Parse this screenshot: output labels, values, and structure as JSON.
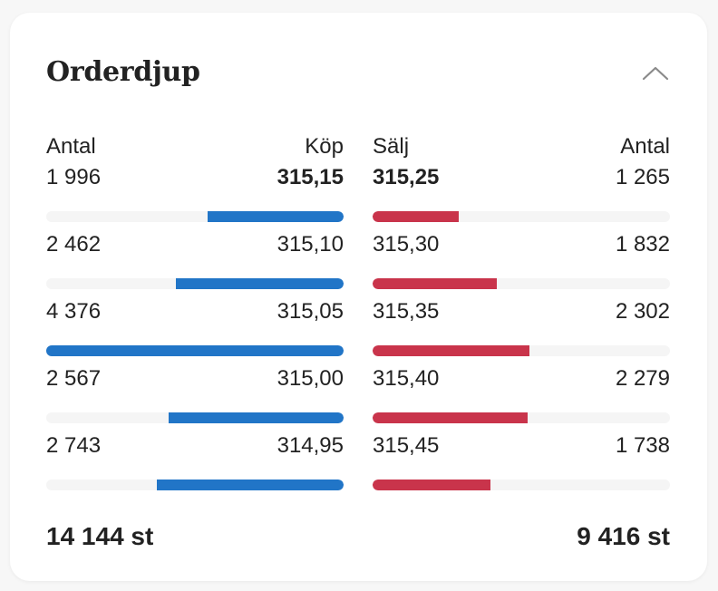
{
  "widget": {
    "title": "Orderdjup",
    "collapse_icon": "chevron-up-icon"
  },
  "buy": {
    "header_quantity": "Antal",
    "header_price": "Köp",
    "color": "#2175c7",
    "rows": [
      {
        "quantity": "1 996",
        "price": "315,15",
        "fill_pct": 45.6
      },
      {
        "quantity": "2 462",
        "price": "315,10",
        "fill_pct": 56.3
      },
      {
        "quantity": "4 376",
        "price": "315,05",
        "fill_pct": 100
      },
      {
        "quantity": "2 567",
        "price": "315,00",
        "fill_pct": 58.7
      },
      {
        "quantity": "2 743",
        "price": "314,95",
        "fill_pct": 62.7
      }
    ],
    "total": "14 144 st"
  },
  "sell": {
    "header_price": "Sälj",
    "header_quantity": "Antal",
    "color": "#c9344b",
    "rows": [
      {
        "price": "315,25",
        "quantity": "1 265",
        "fill_pct": 28.9
      },
      {
        "price": "315,30",
        "quantity": "1 832",
        "fill_pct": 41.9
      },
      {
        "price": "315,35",
        "quantity": "2 302",
        "fill_pct": 52.6
      },
      {
        "price": "315,40",
        "quantity": "2 279",
        "fill_pct": 52.1
      },
      {
        "price": "315,45",
        "quantity": "1 738",
        "fill_pct": 39.7
      }
    ],
    "total": "9 416 st"
  }
}
